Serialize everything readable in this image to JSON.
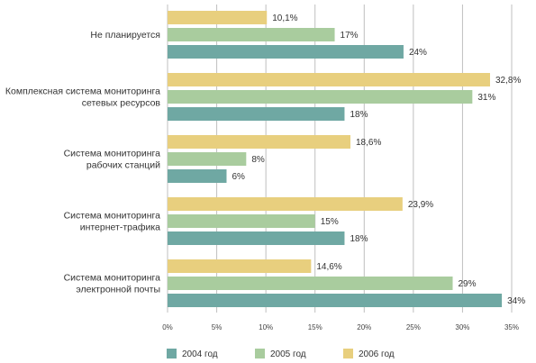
{
  "chart_data": {
    "type": "bar",
    "orientation": "horizontal",
    "categories": [
      [
        "Не планируется"
      ],
      [
        "Комплексная система мониторинга",
        "сетевых ресурсов"
      ],
      [
        "Система мониторинга",
        "рабочих станций"
      ],
      [
        "Система мониторинга",
        "интернет-трафика"
      ],
      [
        "Система мониторинга",
        "электронной почты"
      ]
    ],
    "series": [
      {
        "name": "2006 год",
        "color": "#e8cf7e",
        "values": [
          10.1,
          32.8,
          18.6,
          23.9,
          14.6
        ],
        "labels": [
          "10,1%",
          "32,8%",
          "18,6%",
          "23,9%",
          "14,6%"
        ]
      },
      {
        "name": "2005 год",
        "color": "#a9cc9e",
        "values": [
          17,
          31,
          8,
          15,
          29
        ],
        "labels": [
          "17%",
          "31%",
          "8%",
          "15%",
          "29%"
        ]
      },
      {
        "name": "2004 год",
        "color": "#6fa8a3",
        "values": [
          24,
          18,
          6,
          18,
          34
        ],
        "labels": [
          "24%",
          "18%",
          "6%",
          "18%",
          "34%"
        ]
      }
    ],
    "xlim": [
      0,
      35
    ],
    "xticks": [
      "0%",
      "5%",
      "10%",
      "15%",
      "20%",
      "25%",
      "30%",
      "35%"
    ],
    "grid": true,
    "legend_position": "bottom",
    "legend_order": [
      "2004 год",
      "2005 год",
      "2006 год"
    ]
  }
}
